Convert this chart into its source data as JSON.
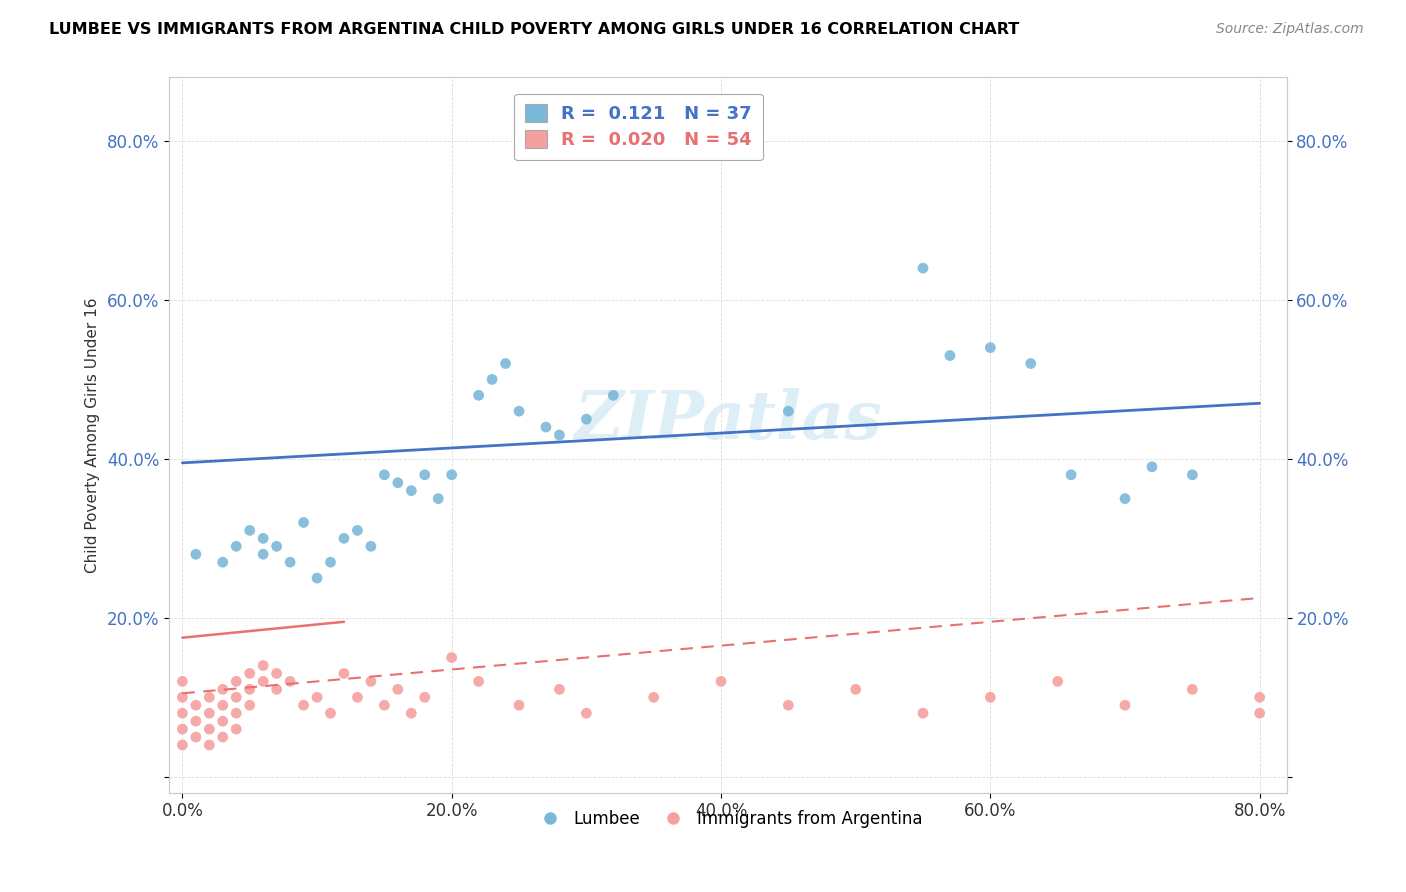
{
  "title": "LUMBEE VS IMMIGRANTS FROM ARGENTINA CHILD POVERTY AMONG GIRLS UNDER 16 CORRELATION CHART",
  "source": "Source: ZipAtlas.com",
  "ylabel": "Child Poverty Among Girls Under 16",
  "xlabel": "",
  "xlim": [
    -0.01,
    0.82
  ],
  "ylim": [
    -0.02,
    0.88
  ],
  "yticks": [
    0.0,
    0.2,
    0.4,
    0.6,
    0.8
  ],
  "xticks": [
    0.0,
    0.2,
    0.4,
    0.6,
    0.8
  ],
  "xtick_labels": [
    "0.0%",
    "20.0%",
    "40.0%",
    "60.0%",
    "80.0%"
  ],
  "ytick_labels": [
    "",
    "20.0%",
    "40.0%",
    "60.0%",
    "80.0%"
  ],
  "right_ytick_labels": [
    "",
    "20.0%",
    "40.0%",
    "60.0%",
    "80.0%"
  ],
  "lumbee_color": "#7ab8d9",
  "argentina_color": "#f4a0a0",
  "lumbee_line_color": "#4472c4",
  "argentina_line_color": "#e87070",
  "lumbee_R": 0.121,
  "lumbee_N": 37,
  "argentina_R": 0.02,
  "argentina_N": 54,
  "watermark": "ZIPatlas",
  "lumbee_x": [
    0.01,
    0.03,
    0.04,
    0.05,
    0.06,
    0.06,
    0.07,
    0.08,
    0.09,
    0.1,
    0.11,
    0.12,
    0.13,
    0.14,
    0.15,
    0.16,
    0.17,
    0.18,
    0.19,
    0.2,
    0.22,
    0.23,
    0.24,
    0.25,
    0.27,
    0.28,
    0.3,
    0.32,
    0.45,
    0.55,
    0.57,
    0.6,
    0.63,
    0.66,
    0.7,
    0.72,
    0.75
  ],
  "lumbee_y": [
    0.28,
    0.27,
    0.29,
    0.31,
    0.3,
    0.28,
    0.29,
    0.27,
    0.32,
    0.25,
    0.27,
    0.3,
    0.31,
    0.29,
    0.38,
    0.37,
    0.36,
    0.38,
    0.35,
    0.38,
    0.48,
    0.5,
    0.52,
    0.46,
    0.44,
    0.43,
    0.45,
    0.48,
    0.46,
    0.64,
    0.53,
    0.54,
    0.52,
    0.38,
    0.35,
    0.39,
    0.38
  ],
  "argentina_x": [
    0.0,
    0.0,
    0.0,
    0.0,
    0.0,
    0.01,
    0.01,
    0.01,
    0.02,
    0.02,
    0.02,
    0.02,
    0.03,
    0.03,
    0.03,
    0.03,
    0.04,
    0.04,
    0.04,
    0.04,
    0.05,
    0.05,
    0.05,
    0.06,
    0.06,
    0.07,
    0.07,
    0.08,
    0.09,
    0.1,
    0.11,
    0.12,
    0.13,
    0.14,
    0.15,
    0.16,
    0.17,
    0.18,
    0.2,
    0.22,
    0.25,
    0.28,
    0.3,
    0.35,
    0.4,
    0.45,
    0.5,
    0.55,
    0.6,
    0.65,
    0.7,
    0.75,
    0.8,
    0.8
  ],
  "argentina_y": [
    0.1,
    0.08,
    0.06,
    0.04,
    0.12,
    0.09,
    0.07,
    0.05,
    0.1,
    0.08,
    0.06,
    0.04,
    0.11,
    0.09,
    0.07,
    0.05,
    0.12,
    0.1,
    0.08,
    0.06,
    0.13,
    0.11,
    0.09,
    0.14,
    0.12,
    0.13,
    0.11,
    0.12,
    0.09,
    0.1,
    0.08,
    0.13,
    0.1,
    0.12,
    0.09,
    0.11,
    0.08,
    0.1,
    0.15,
    0.12,
    0.09,
    0.11,
    0.08,
    0.1,
    0.12,
    0.09,
    0.11,
    0.08,
    0.1,
    0.12,
    0.09,
    0.11,
    0.08,
    0.1
  ]
}
